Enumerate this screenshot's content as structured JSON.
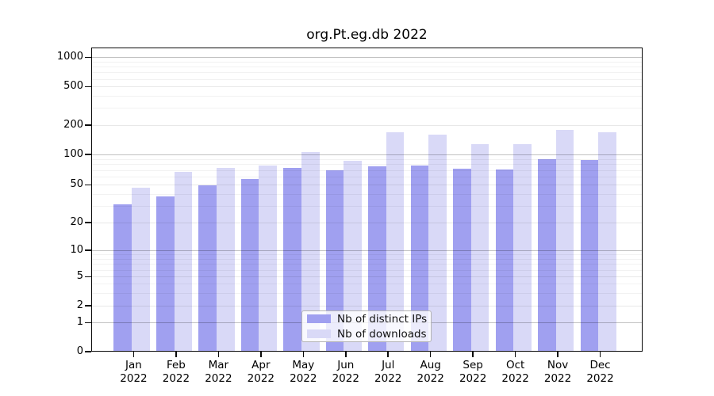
{
  "chart_data": {
    "type": "bar",
    "title": "org.Pt.eg.db 2022",
    "categories": [
      "Jan",
      "Feb",
      "Mar",
      "Apr",
      "May",
      "Jun",
      "Jul",
      "Aug",
      "Sep",
      "Oct",
      "Nov",
      "Dec"
    ],
    "year_label": "2022",
    "series": [
      {
        "name": "Nb of distinct IPs",
        "color": "#a0a0f0",
        "values": [
          31,
          38,
          49,
          57,
          74,
          70,
          76,
          77,
          72,
          71,
          90,
          88
        ]
      },
      {
        "name": "Nb of downloads",
        "color": "#d9d9f7",
        "values": [
          47,
          67,
          74,
          77,
          105,
          86,
          168,
          160,
          128,
          127,
          179,
          170
        ]
      }
    ],
    "y_scale": "log",
    "ylim": [
      0,
      1000
    ],
    "y_ticks": [
      0,
      1,
      2,
      5,
      10,
      20,
      50,
      100,
      200,
      500,
      1000
    ],
    "y_minor_ticks": [
      3,
      4,
      6,
      7,
      8,
      9,
      30,
      40,
      60,
      70,
      80,
      90,
      300,
      400,
      600,
      700,
      800,
      900
    ],
    "grid": true,
    "legend_position": "lower center",
    "colors": {
      "grid_major": "rgba(0,0,0,0.24)",
      "grid_mid": "rgba(0,0,0,0.09)",
      "grid_minor": "rgba(0,0,0,0.05)",
      "axis": "#0a0a0a",
      "text": "#000000",
      "legend_bg": "rgba(255,255,255,0.8)",
      "legend_border": "#b4b4b4"
    }
  }
}
